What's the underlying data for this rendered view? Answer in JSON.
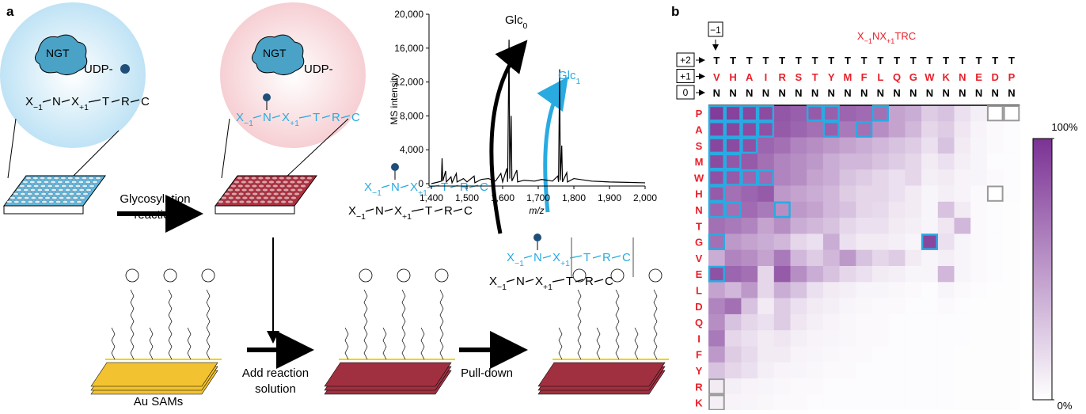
{
  "panel_a": {
    "label": "a",
    "enzyme": "NGT",
    "donor": "UDP-",
    "peptide": [
      {
        "text": "X",
        "sub": "−1"
      },
      {
        "text": "N"
      },
      {
        "text": "X",
        "sub": "+1"
      },
      {
        "text": "T"
      },
      {
        "text": "R"
      },
      {
        "text": "C"
      }
    ],
    "step1": [
      "Glycosylation",
      "reaction"
    ],
    "step2": [
      "Add reaction",
      "solution"
    ],
    "step3": "Pull-down",
    "surface": "Au SAMs"
  },
  "panel_b": {
    "label": "b",
    "position_labels": [
      "−1",
      "+2",
      "+1",
      "0"
    ],
    "residue_plus2": "T",
    "residue_0": "N"
  },
  "chart_data": [
    {
      "type": "line",
      "ylabel": "MS intensity",
      "xlabel": "m/z",
      "xlim": [
        1400,
        2000
      ],
      "ylim": [
        0,
        20000
      ],
      "xticks": [
        {
          "value": 1400,
          "label": "1,400"
        },
        {
          "value": 1500,
          "label": "1,500"
        },
        {
          "value": 1600,
          "label": "1,600"
        },
        {
          "value": 1700,
          "label": "1,700"
        },
        {
          "value": 1800,
          "label": "1,800"
        },
        {
          "value": 1900,
          "label": "1,900"
        },
        {
          "value": 2000,
          "label": "2,000"
        }
      ],
      "yticks": [
        0,
        {
          "value": 4000,
          "label": "4,000"
        },
        {
          "value": 8000,
          "label": "8,000"
        },
        {
          "value": 12000,
          "label": "12,000"
        },
        {
          "value": 16000,
          "label": "16,000"
        },
        {
          "value": 20000,
          "label": "20,000"
        }
      ],
      "annotations": [
        {
          "text": "Glc",
          "sub": "0",
          "color": "#000000"
        },
        {
          "text": "Glc",
          "sub": "1",
          "color": "#29abe2"
        }
      ],
      "series": [
        {
          "color": "#000000",
          "x": [
            1400,
            1420,
            1428,
            1430,
            1432,
            1440,
            1442,
            1455,
            1458,
            1470,
            1472,
            1490,
            1500,
            1520,
            1522,
            1540,
            1560,
            1580,
            1595,
            1600,
            1612,
            1614,
            1618,
            1620,
            1624,
            1626,
            1640,
            1642,
            1660,
            1690,
            1710,
            1740,
            1755,
            1757,
            1760,
            1762,
            1766,
            1768,
            1780,
            1782,
            1800,
            1850,
            1900,
            1950,
            2000
          ],
          "values": [
            0,
            200,
            300,
            3000,
            300,
            1500,
            200,
            800,
            100,
            1200,
            200,
            600,
            200,
            900,
            100,
            500,
            600,
            300,
            1200,
            200,
            1800,
            200,
            17000,
            600,
            8000,
            300,
            1600,
            200,
            400,
            300,
            500,
            300,
            900,
            200,
            13500,
            400,
            4500,
            200,
            1300,
            200,
            600,
            300,
            200,
            150,
            100
          ]
        }
      ]
    },
    {
      "type": "heatmap",
      "title": [
        {
          "text": "X",
          "sub": "−1"
        },
        {
          "text": "NX",
          "sub": "+1"
        },
        {
          "text": "TRC"
        }
      ],
      "x_categories": [
        "V",
        "H",
        "A",
        "I",
        "R",
        "S",
        "T",
        "Y",
        "M",
        "F",
        "L",
        "Q",
        "G",
        "W",
        "K",
        "N",
        "E",
        "D",
        "P"
      ],
      "y_categories": [
        "P",
        "A",
        "S",
        "M",
        "W",
        "H",
        "N",
        "T",
        "G",
        "V",
        "E",
        "L",
        "D",
        "Q",
        "I",
        "F",
        "Y",
        "R",
        "K"
      ],
      "values": [
        [
          95,
          92,
          90,
          88,
          82,
          78,
          80,
          78,
          75,
          72,
          70,
          45,
          40,
          25,
          30,
          15,
          8,
          0,
          0
        ],
        [
          92,
          90,
          88,
          85,
          80,
          75,
          70,
          78,
          65,
          70,
          55,
          45,
          35,
          20,
          25,
          12,
          6,
          3,
          2
        ],
        [
          90,
          88,
          85,
          75,
          70,
          60,
          55,
          50,
          45,
          40,
          35,
          30,
          25,
          15,
          30,
          10,
          5,
          3,
          2
        ],
        [
          88,
          82,
          80,
          70,
          60,
          55,
          50,
          40,
          35,
          35,
          30,
          25,
          20,
          10,
          15,
          8,
          5,
          2,
          2
        ],
        [
          85,
          80,
          75,
          72,
          60,
          55,
          45,
          40,
          30,
          25,
          20,
          15,
          20,
          8,
          10,
          6,
          5,
          3,
          2
        ],
        [
          80,
          70,
          75,
          80,
          50,
          45,
          40,
          35,
          25,
          20,
          20,
          15,
          10,
          5,
          8,
          6,
          3,
          0,
          2
        ],
        [
          75,
          70,
          72,
          65,
          55,
          50,
          45,
          35,
          30,
          20,
          18,
          12,
          10,
          5,
          30,
          10,
          3,
          2,
          1
        ],
        [
          70,
          65,
          60,
          45,
          55,
          40,
          35,
          30,
          20,
          15,
          15,
          10,
          8,
          5,
          12,
          35,
          3,
          2,
          1
        ],
        [
          70,
          50,
          45,
          40,
          35,
          20,
          15,
          40,
          15,
          10,
          10,
          8,
          5,
          90,
          15,
          5,
          3,
          2,
          1
        ],
        [
          40,
          60,
          55,
          45,
          65,
          35,
          25,
          35,
          50,
          30,
          20,
          25,
          10,
          5,
          8,
          5,
          3,
          2,
          1
        ],
        [
          85,
          75,
          70,
          20,
          80,
          55,
          40,
          30,
          20,
          15,
          10,
          8,
          5,
          5,
          35,
          5,
          3,
          2,
          1
        ],
        [
          45,
          35,
          50,
          20,
          40,
          30,
          15,
          10,
          8,
          5,
          5,
          4,
          3,
          2,
          5,
          3,
          2,
          1,
          1
        ],
        [
          60,
          70,
          30,
          10,
          25,
          15,
          10,
          8,
          5,
          4,
          3,
          3,
          2,
          2,
          3,
          2,
          1,
          1,
          1
        ],
        [
          55,
          30,
          20,
          15,
          25,
          12,
          8,
          6,
          4,
          3,
          3,
          2,
          2,
          2,
          2,
          2,
          1,
          1,
          1
        ],
        [
          65,
          20,
          15,
          10,
          12,
          8,
          6,
          5,
          4,
          3,
          3,
          2,
          2,
          2,
          2,
          2,
          1,
          1,
          1
        ],
        [
          50,
          25,
          18,
          10,
          10,
          6,
          5,
          4,
          3,
          3,
          2,
          2,
          2,
          2,
          2,
          1,
          1,
          1,
          1
        ],
        [
          30,
          20,
          15,
          8,
          6,
          5,
          4,
          3,
          3,
          2,
          2,
          2,
          2,
          2,
          2,
          1,
          1,
          1,
          1
        ],
        [
          10,
          8,
          6,
          5,
          4,
          3,
          3,
          2,
          2,
          2,
          2,
          2,
          2,
          2,
          2,
          1,
          1,
          1,
          1
        ],
        [
          8,
          6,
          5,
          4,
          3,
          3,
          2,
          2,
          2,
          2,
          2,
          2,
          2,
          2,
          2,
          1,
          1,
          1,
          1
        ]
      ],
      "zlim": [
        0,
        100
      ],
      "colorbar_ticks": [
        {
          "value": 100,
          "label": "100%"
        },
        {
          "value": 0,
          "label": "0%"
        }
      ],
      "color_low": "#ffffff",
      "color_high": "#7b3294",
      "label_color": "#e8202a",
      "highlight_color": "#29abe2",
      "highlighted": [
        [
          0,
          0
        ],
        [
          0,
          1
        ],
        [
          0,
          2
        ],
        [
          0,
          3
        ],
        [
          0,
          6
        ],
        [
          0,
          7
        ],
        [
          0,
          10
        ],
        [
          1,
          0
        ],
        [
          1,
          1
        ],
        [
          1,
          2
        ],
        [
          1,
          3
        ],
        [
          1,
          7
        ],
        [
          1,
          9
        ],
        [
          2,
          0
        ],
        [
          2,
          1
        ],
        [
          2,
          2
        ],
        [
          3,
          0
        ],
        [
          3,
          1
        ],
        [
          4,
          0
        ],
        [
          4,
          1
        ],
        [
          4,
          2
        ],
        [
          4,
          3
        ],
        [
          5,
          0
        ],
        [
          6,
          0
        ],
        [
          6,
          1
        ],
        [
          6,
          4
        ],
        [
          8,
          0
        ],
        [
          8,
          13
        ],
        [
          10,
          0
        ]
      ],
      "excluded_color": "#999999",
      "excluded": [
        [
          0,
          17
        ],
        [
          0,
          18
        ],
        [
          5,
          17
        ],
        [
          17,
          0
        ],
        [
          18,
          0
        ]
      ]
    }
  ]
}
